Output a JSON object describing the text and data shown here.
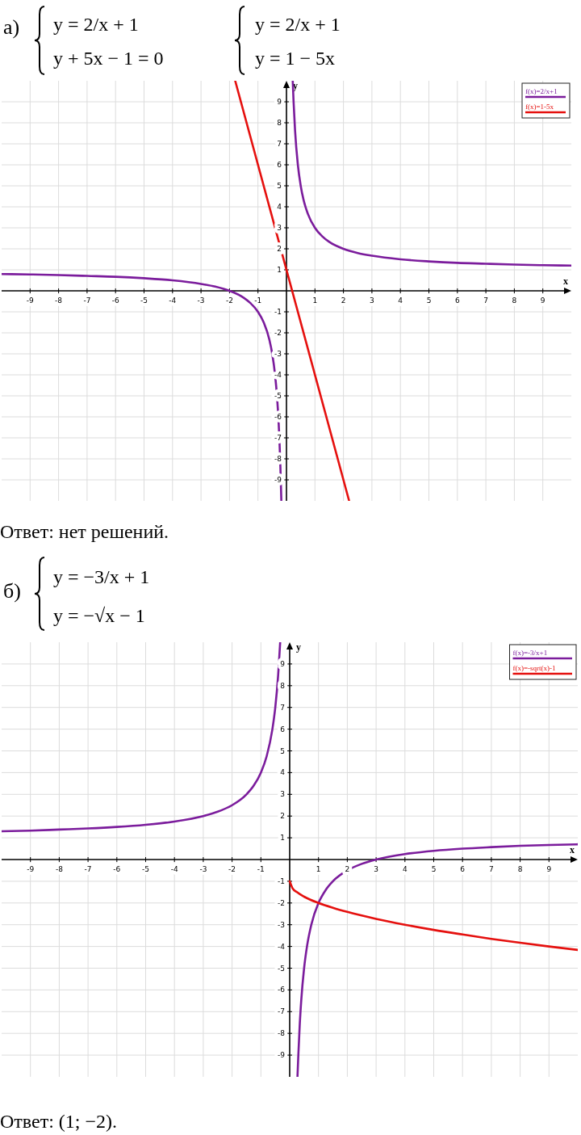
{
  "chart_data": [
    {
      "type": "line",
      "title": "а)",
      "xlabel": "x",
      "ylabel": "y",
      "xlim": [
        -10,
        10
      ],
      "ylim": [
        -10,
        10
      ],
      "xticks": [
        -9,
        -8,
        -7,
        -6,
        -5,
        -4,
        -3,
        -2,
        -1,
        1,
        2,
        3,
        4,
        5,
        6,
        7,
        8,
        9
      ],
      "yticks": [
        -9,
        -8,
        -7,
        -6,
        -5,
        -4,
        -3,
        -2,
        -1,
        1,
        2,
        3,
        4,
        5,
        6,
        7,
        8,
        9
      ],
      "grid": true,
      "legend": "top right",
      "series": [
        {
          "name": "f(x)=2/x+1",
          "color": "#7b1c9c",
          "x": [
            -10,
            -9,
            -8,
            -7,
            -6,
            -5,
            -4,
            -3,
            -2.5,
            -2,
            -1.5,
            -1.25,
            -1,
            -0.8,
            -0.6,
            -0.5,
            -0.4,
            -0.33,
            -0.3,
            -0.25,
            -0.22,
            -0.2,
            -0.18,
            0,
            0.22,
            0.25,
            0.3,
            0.4,
            0.5,
            0.6,
            0.75,
            1,
            1.25,
            1.5,
            2,
            2.5,
            3,
            4,
            5,
            6,
            7,
            8,
            9,
            10
          ],
          "values": [
            0.8,
            0.78,
            0.75,
            0.71,
            0.67,
            0.6,
            0.5,
            0.33,
            0.2,
            0,
            -0.33,
            -0.6,
            -1,
            -1.5,
            -2.33,
            -3,
            -4,
            -5.06,
            -5.67,
            -7,
            -8.09,
            -9,
            -10,
            null,
            10,
            9,
            7.67,
            6,
            5,
            4.33,
            3.67,
            3,
            2.6,
            2.33,
            2,
            1.8,
            1.67,
            1.5,
            1.4,
            1.33,
            1.29,
            1.25,
            1.22,
            1.2
          ]
        },
        {
          "name": "f(x)=1-5x",
          "color": "#e5100e",
          "x": [
            -1.8,
            2.2
          ],
          "values": [
            10,
            -10
          ]
        }
      ],
      "annotations": [
        "y = 2/x + 1",
        "y + 5x − 1 = 0",
        "y = 2/x + 1",
        "y = 1 − 5x",
        "Ответ: нет решений."
      ]
    },
    {
      "type": "line",
      "title": "б)",
      "xlabel": "x",
      "ylabel": "y",
      "xlim": [
        -10,
        10
      ],
      "ylim": [
        -10,
        10
      ],
      "xticks": [
        -9,
        -8,
        -7,
        -6,
        -5,
        -4,
        -3,
        -2,
        -1,
        1,
        2,
        3,
        4,
        5,
        6,
        7,
        8,
        9
      ],
      "yticks": [
        -9,
        -8,
        -7,
        -6,
        -5,
        -4,
        -3,
        -2,
        -1,
        1,
        2,
        3,
        4,
        5,
        6,
        7,
        8,
        9
      ],
      "grid": true,
      "legend": "top right",
      "series": [
        {
          "name": "f(x)=-3/x+1",
          "color": "#7b1c9c",
          "x": [
            -10,
            -9,
            -8,
            -7,
            -6,
            -5,
            -4,
            -3,
            -2.5,
            -2,
            -1.5,
            -1.25,
            -1,
            -0.8,
            -0.6,
            -0.5,
            -0.4,
            -0.35,
            -0.33,
            0,
            0.27,
            0.3,
            0.35,
            0.4,
            0.5,
            0.6,
            0.75,
            1,
            1.25,
            1.5,
            2,
            2.5,
            3,
            4,
            5,
            6,
            7,
            8,
            9,
            10
          ],
          "values": [
            1.3,
            1.33,
            1.38,
            1.43,
            1.5,
            1.6,
            1.75,
            2,
            2.2,
            2.5,
            3,
            3.4,
            4,
            4.75,
            6,
            7,
            8.5,
            9.57,
            10,
            null,
            -10,
            -9,
            -7.57,
            -6.5,
            -5,
            -4,
            -3,
            -2,
            -1.4,
            -1,
            -0.5,
            -0.2,
            0,
            0.25,
            0.4,
            0.5,
            0.57,
            0.63,
            0.67,
            0.7
          ]
        },
        {
          "name": "f(x)=-sqrt(x)-1",
          "color": "#e5100e",
          "x": [
            0,
            0.1,
            0.25,
            0.5,
            1,
            1.5,
            2,
            3,
            4,
            5,
            6,
            7,
            8,
            9,
            10
          ],
          "values": [
            -1,
            -1.32,
            -1.5,
            -1.71,
            -2,
            -2.22,
            -2.41,
            -2.73,
            -3,
            -3.24,
            -3.45,
            -3.65,
            -3.83,
            -4,
            -4.16
          ]
        }
      ],
      "annotations": [
        "y = −3/x + 1",
        "y = −√x − 1",
        "Ответ: (1; −2)."
      ]
    }
  ]
}
